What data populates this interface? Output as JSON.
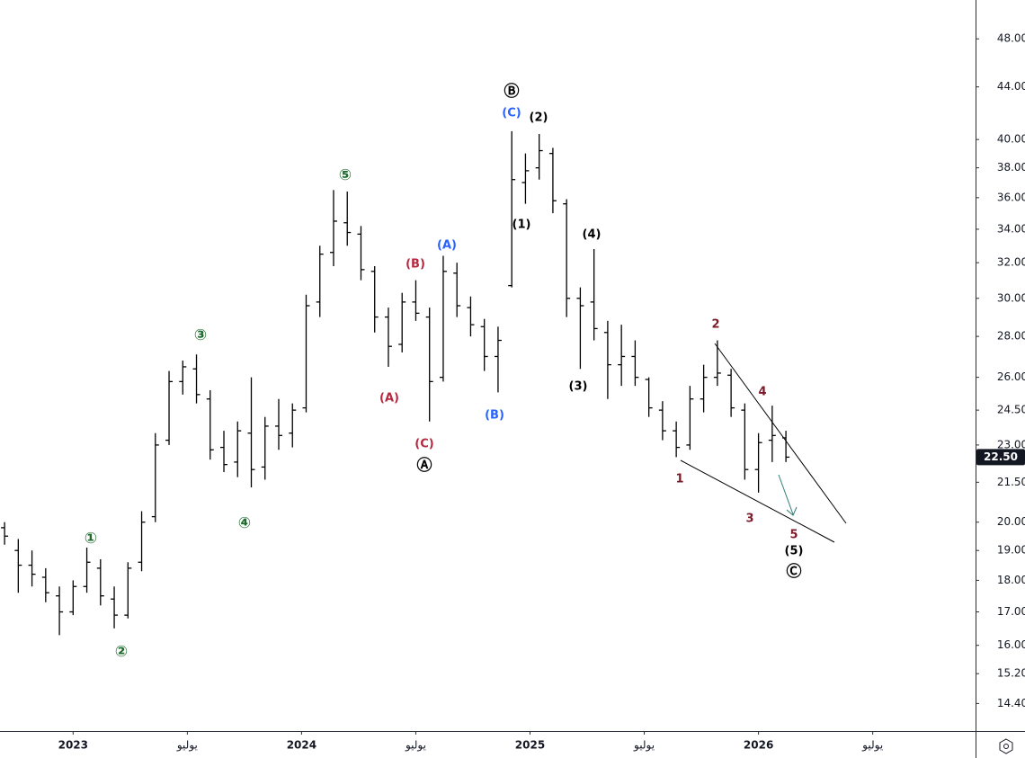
{
  "chart_data": {
    "type": "ohlc",
    "log_scale": true,
    "grid": false,
    "color": "#000000",
    "xlim": [
      2022.68,
      2026.95
    ],
    "xticks": [
      2023,
      {
        "value": 2023.5,
        "label": "يوليو"
      },
      2024,
      {
        "value": 2024.5,
        "label": "يوليو"
      },
      2025,
      {
        "value": 2025.5,
        "label": "يوليو"
      },
      2026,
      {
        "value": 2026.5,
        "label": "يوليو"
      }
    ],
    "ylim": [
      13.7,
      51.5
    ],
    "yticks": [
      {
        "value": 48,
        "label": "48.00"
      },
      {
        "value": 44,
        "label": "44.00"
      },
      {
        "value": 40,
        "label": "40.00"
      },
      {
        "value": 38,
        "label": "38.00"
      },
      {
        "value": 36,
        "label": "36.00"
      },
      {
        "value": 34,
        "label": "34.00"
      },
      {
        "value": 32,
        "label": "32.00"
      },
      {
        "value": 30,
        "label": "30.00"
      },
      {
        "value": 28,
        "label": "28.00"
      },
      {
        "value": 26,
        "label": "26.00"
      },
      {
        "value": 24.5,
        "label": "24.50"
      },
      {
        "value": 23,
        "label": "23.00"
      },
      {
        "value": 21.5,
        "label": "21.50"
      },
      {
        "value": 20,
        "label": "20.00"
      },
      {
        "value": 19,
        "label": "19.00"
      },
      {
        "value": 18,
        "label": "18.00"
      },
      {
        "value": 17,
        "label": "17.00"
      },
      {
        "value": 16,
        "label": "16.00"
      },
      {
        "value": 15.2,
        "label": "15.20"
      },
      {
        "value": 14.4,
        "label": "14.40"
      }
    ],
    "last_price": {
      "value": 22.5,
      "label": "22.50"
    },
    "x": [
      2022.7,
      2022.76,
      2022.82,
      2022.88,
      2022.94,
      2023.0,
      2023.06,
      2023.12,
      2023.18,
      2023.24,
      2023.3,
      2023.36,
      2023.42,
      2023.48,
      2023.54,
      2023.6,
      2023.66,
      2023.72,
      2023.78,
      2023.84,
      2023.9,
      2023.96,
      2024.02,
      2024.08,
      2024.14,
      2024.2,
      2024.26,
      2024.32,
      2024.38,
      2024.44,
      2024.5,
      2024.56,
      2024.62,
      2024.68,
      2024.74,
      2024.8,
      2024.86,
      2024.92,
      2024.98,
      2025.04,
      2025.1,
      2025.16,
      2025.22,
      2025.28,
      2025.34,
      2025.4,
      2025.46,
      2025.52,
      2025.58,
      2025.64,
      2025.7,
      2025.76,
      2025.82,
      2025.88,
      2025.94,
      2026.0,
      2026.06,
      2026.12
    ],
    "open": [
      19.8,
      19.0,
      18.5,
      18.1,
      17.5,
      17.0,
      17.8,
      18.4,
      17.4,
      16.9,
      18.6,
      20.2,
      23.2,
      25.8,
      26.4,
      25.0,
      22.9,
      22.3,
      23.5,
      22.1,
      23.8,
      23.5,
      24.6,
      29.8,
      32.6,
      34.4,
      33.7,
      31.5,
      29.0,
      27.6,
      29.8,
      29.0,
      26.0,
      31.4,
      29.5,
      28.5,
      27.0,
      30.7,
      37.0,
      38.0,
      39.0,
      35.6,
      30.0,
      29.8,
      28.2,
      26.6,
      27.0,
      25.9,
      24.5,
      23.6,
      23.0,
      25.0,
      26.0,
      26.1,
      24.5,
      22.0,
      23.2,
      23.3
    ],
    "high": [
      20.0,
      19.4,
      19.0,
      18.4,
      17.8,
      18.0,
      19.1,
      18.7,
      17.8,
      18.6,
      20.4,
      23.5,
      26.3,
      26.8,
      27.1,
      25.4,
      23.6,
      24.0,
      26.0,
      24.2,
      25.0,
      24.8,
      30.2,
      33.0,
      36.5,
      36.4,
      34.2,
      31.8,
      29.5,
      30.3,
      31.0,
      29.5,
      32.4,
      32.0,
      30.1,
      28.9,
      28.5,
      40.6,
      39.0,
      40.4,
      39.4,
      35.9,
      30.6,
      32.8,
      28.8,
      28.6,
      27.8,
      26.0,
      24.9,
      24.0,
      25.6,
      26.6,
      27.8,
      26.4,
      24.8,
      23.5,
      24.7,
      23.6
    ],
    "low": [
      19.2,
      17.6,
      17.8,
      17.3,
      16.3,
      16.9,
      17.6,
      17.2,
      16.5,
      16.8,
      18.3,
      20.0,
      23.0,
      25.2,
      24.8,
      22.4,
      21.9,
      21.7,
      21.3,
      21.6,
      22.8,
      22.9,
      24.4,
      29.0,
      31.8,
      33.0,
      31.0,
      28.2,
      26.5,
      27.2,
      28.8,
      24.0,
      25.8,
      29.0,
      28.0,
      26.3,
      25.3,
      30.6,
      35.6,
      37.2,
      35.0,
      29.0,
      26.4,
      27.8,
      25.0,
      25.6,
      25.6,
      24.2,
      23.2,
      22.5,
      22.8,
      24.4,
      25.6,
      24.2,
      21.6,
      21.1,
      22.3,
      22.3
    ],
    "close": [
      19.5,
      18.5,
      18.2,
      17.6,
      17.0,
      17.8,
      18.6,
      17.5,
      16.9,
      18.4,
      20.0,
      23.0,
      25.8,
      26.5,
      25.2,
      22.8,
      22.2,
      23.6,
      22.0,
      23.8,
      23.4,
      24.5,
      29.6,
      32.5,
      34.5,
      33.8,
      31.6,
      29.0,
      27.5,
      29.8,
      29.2,
      25.8,
      31.5,
      29.6,
      28.6,
      27.0,
      27.8,
      37.2,
      37.8,
      39.2,
      35.8,
      30.0,
      29.6,
      28.4,
      26.6,
      27.0,
      26.0,
      24.6,
      23.6,
      22.9,
      25.0,
      26.0,
      26.2,
      24.6,
      22.0,
      23.1,
      23.4,
      22.5
    ],
    "annotations": [
      {
        "text": "①",
        "color": "#1e6b2e"
      },
      {
        "text": "②",
        "color": "#1e6b2e"
      },
      {
        "text": "③",
        "color": "#1e6b2e"
      },
      {
        "text": "④",
        "color": "#1e6b2e"
      },
      {
        "text": "⑤",
        "color": "#1e6b2e"
      },
      {
        "text": "(A)",
        "color": "#b5283f"
      },
      {
        "text": "(B)",
        "color": "#b5283f"
      },
      {
        "text": "(C)",
        "color": "#b5283f"
      },
      {
        "text": "Ⓐ",
        "color": "#000000"
      },
      {
        "text": "(A)",
        "color": "#2962ff"
      },
      {
        "text": "(B)",
        "color": "#2962ff"
      },
      {
        "text": "(C)",
        "color": "#2962ff"
      },
      {
        "text": "Ⓑ",
        "color": "#000000"
      },
      {
        "text": "(1)",
        "color": "#000000"
      },
      {
        "text": "(2)",
        "color": "#000000"
      },
      {
        "text": "(3)",
        "color": "#000000"
      },
      {
        "text": "(4)",
        "color": "#000000"
      },
      {
        "text": "1",
        "color": "#7b1b2a"
      },
      {
        "text": "2",
        "color": "#7b1b2a"
      },
      {
        "text": "3",
        "color": "#7b1b2a"
      },
      {
        "text": "4",
        "color": "#7b1b2a"
      },
      {
        "text": "5",
        "color": "#7b1b2a"
      },
      {
        "text": "(5)",
        "color": "#000000"
      },
      {
        "text": "Ⓒ",
        "color": "#000000"
      }
    ]
  }
}
